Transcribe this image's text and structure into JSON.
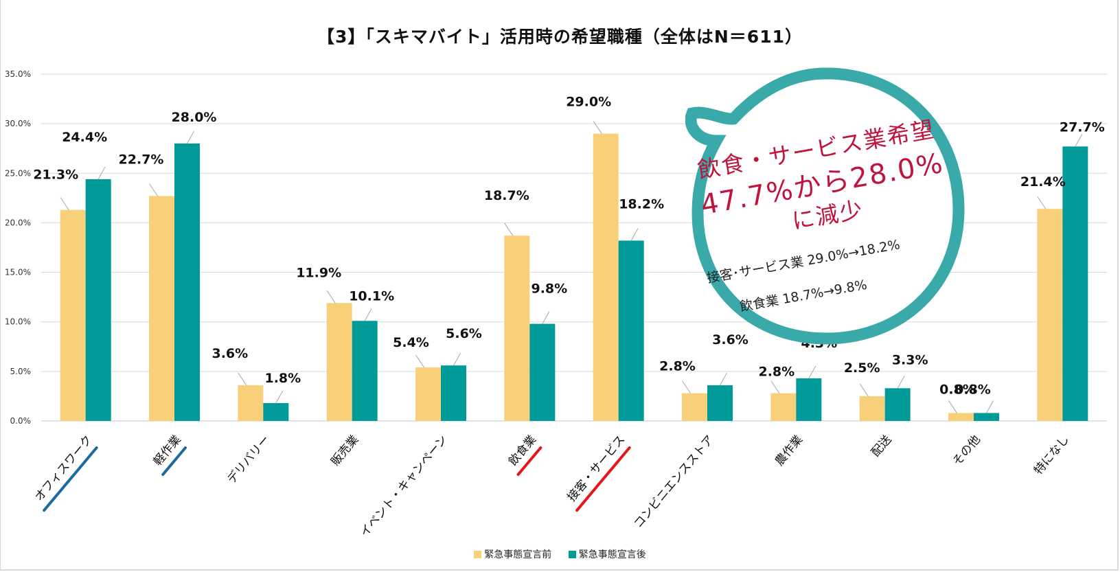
{
  "chart_data": {
    "type": "bar",
    "title": "【3】「スキマバイト」活用時の希望職種（全体はN＝611）",
    "xlabel": "",
    "ylabel": "",
    "ylim": [
      0,
      35
    ],
    "yticks": [
      "0.0%",
      "5.0%",
      "10.0%",
      "15.0%",
      "20.0%",
      "25.0%",
      "30.0%",
      "35.0%"
    ],
    "ytick_values": [
      0,
      5,
      10,
      15,
      20,
      25,
      30,
      35
    ],
    "grid": true,
    "legend_position": "bottom",
    "categories": [
      "オフィスワーク",
      "軽作業",
      "デリバリー",
      "販売業",
      "イベント・キャンペーン",
      "飲食業",
      "接客・サービス",
      "コンビニエンスストア",
      "農作業",
      "配送",
      "その他",
      "特になし"
    ],
    "series": [
      {
        "name": "緊急事態宣言前",
        "color": "#f9d07a",
        "values": [
          21.3,
          22.7,
          3.6,
          11.9,
          5.4,
          18.7,
          29.0,
          2.8,
          2.8,
          2.5,
          0.8,
          21.4
        ],
        "labels": [
          "21.3%",
          "22.7%",
          "3.6%",
          "11.9%",
          "5.4%",
          "18.7%",
          "29.0%",
          "2.8%",
          "2.8%",
          "2.5%",
          "0.8%",
          "21.4%"
        ]
      },
      {
        "name": "緊急事態宣言後",
        "color": "#009a98",
        "values": [
          24.4,
          28.0,
          1.8,
          10.1,
          5.6,
          9.8,
          18.2,
          3.6,
          4.3,
          3.3,
          0.8,
          27.7
        ],
        "labels": [
          "24.4%",
          "28.0%",
          "1.8%",
          "10.1%",
          "5.6%",
          "9.8%",
          "18.2%",
          "3.6%",
          "4.3%",
          "3.3%",
          "0.8%",
          "27.7%"
        ]
      }
    ],
    "highlighted_categories": {
      "blue_underline": [
        "オフィスワーク",
        "軽作業"
      ],
      "red_underline": [
        "飲食業",
        "接客・サービス"
      ]
    },
    "annotation": {
      "headline_line1": "飲食・サービス業希望",
      "headline_line2": "47.7%から28.0%",
      "headline_line3": "に減少",
      "detail_line1": "接客･サービス業 29.0%→18.2%",
      "detail_line2": "飲食業 18.7%→9.8%"
    }
  },
  "colors": {
    "before": "#f9d07a",
    "after": "#009a98",
    "callout_ring": "#3aa9a9",
    "callout_text": "#c0143c",
    "underline_blue": "#1a6aa0",
    "underline_red": "#e8141c"
  }
}
